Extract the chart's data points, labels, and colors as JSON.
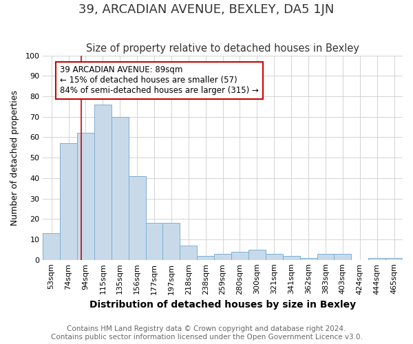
{
  "title": "39, ARCADIAN AVENUE, BEXLEY, DA5 1JN",
  "subtitle": "Size of property relative to detached houses in Bexley",
  "xlabel": "Distribution of detached houses by size in Bexley",
  "ylabel": "Number of detached properties",
  "footnote1": "Contains HM Land Registry data © Crown copyright and database right 2024.",
  "footnote2": "Contains public sector information licensed under the Open Government Licence v3.0.",
  "categories": [
    "53sqm",
    "74sqm",
    "94sqm",
    "115sqm",
    "135sqm",
    "156sqm",
    "177sqm",
    "197sqm",
    "218sqm",
    "238sqm",
    "259sqm",
    "280sqm",
    "300sqm",
    "321sqm",
    "341sqm",
    "362sqm",
    "383sqm",
    "403sqm",
    "424sqm",
    "444sqm",
    "465sqm"
  ],
  "values": [
    13,
    57,
    62,
    76,
    70,
    41,
    18,
    18,
    7,
    2,
    3,
    4,
    5,
    3,
    2,
    1,
    3,
    3,
    0,
    1,
    1
  ],
  "bar_color": "#c8daea",
  "bar_edge_color": "#7bafd4",
  "bar_linewidth": 0.7,
  "property_line_color": "#cc0000",
  "annotation_line1": "39 ARCADIAN AVENUE: 89sqm",
  "annotation_line2": "← 15% of detached houses are smaller (57)",
  "annotation_line3": "84% of semi-detached houses are larger (315) →",
  "annotation_box_facecolor": "#ffffff",
  "annotation_box_edgecolor": "#cc0000",
  "ylim": [
    0,
    100
  ],
  "background_color": "#ffffff",
  "grid_color": "#cccccc",
  "title_fontsize": 13,
  "subtitle_fontsize": 10.5,
  "xlabel_fontsize": 10,
  "ylabel_fontsize": 9,
  "tick_fontsize": 8,
  "footnote_fontsize": 7.5
}
